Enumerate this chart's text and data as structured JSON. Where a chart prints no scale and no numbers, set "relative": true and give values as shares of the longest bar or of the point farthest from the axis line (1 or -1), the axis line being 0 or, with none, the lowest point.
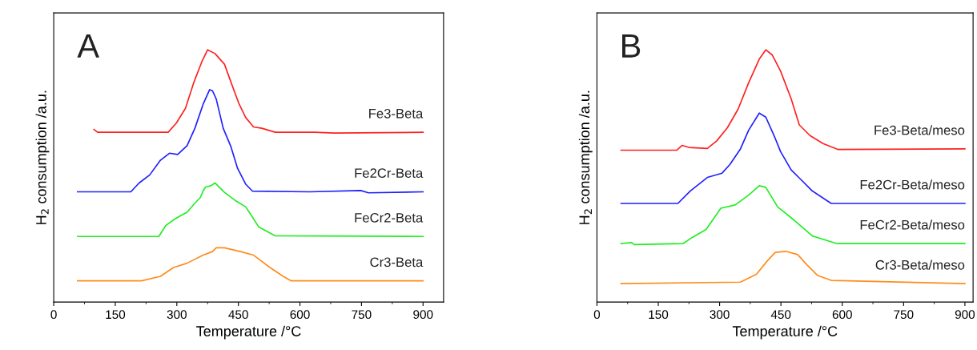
{
  "chart_data": [
    {
      "type": "line",
      "title": "A",
      "xlabel": "Temperature /°C",
      "ylabel": "H$_{2}$ consumption /a.u.",
      "relative": true,
      "xlim": [
        0,
        950
      ],
      "xticks": [
        0,
        150,
        300,
        450,
        600,
        750,
        900
      ],
      "grid": false,
      "legend": false,
      "marker": "none",
      "line_style": "solid",
      "series": [
        {
          "name": "Fe3-Beta",
          "color": "#ff2020",
          "x": [
            98,
            107,
            279,
            299,
            321,
            341,
            361,
            375,
            393,
            416,
            435,
            452,
            468,
            487,
            507,
            540,
            637,
            683,
            900
          ],
          "values": [
            0.684,
            0.673,
            0.673,
            0.71,
            0.768,
            0.869,
            0.953,
            1.0,
            0.985,
            0.943,
            0.858,
            0.784,
            0.731,
            0.694,
            0.689,
            0.673,
            0.673,
            0.67,
            0.673
          ]
        },
        {
          "name": "Fe2Cr-Beta",
          "color": "#2020ff",
          "x": [
            58,
            188,
            208,
            234,
            260,
            282,
            302,
            325,
            344,
            364,
            380,
            387,
            396,
            413,
            432,
            448,
            468,
            484,
            624,
            748,
            767,
            900
          ],
          "values": [
            0.437,
            0.437,
            0.472,
            0.504,
            0.562,
            0.59,
            0.585,
            0.62,
            0.689,
            0.784,
            0.842,
            0.837,
            0.805,
            0.689,
            0.615,
            0.53,
            0.467,
            0.44,
            0.437,
            0.442,
            0.433,
            0.437
          ]
        },
        {
          "name": "FeCr2-Beta",
          "color": "#22ee22",
          "x": [
            58,
            256,
            273,
            295,
            312,
            325,
            341,
            357,
            364,
            370,
            383,
            393,
            416,
            442,
            468,
            481,
            500,
            539,
            900
          ],
          "values": [
            0.26,
            0.26,
            0.303,
            0.329,
            0.345,
            0.356,
            0.387,
            0.414,
            0.44,
            0.456,
            0.461,
            0.472,
            0.435,
            0.403,
            0.377,
            0.345,
            0.297,
            0.263,
            0.26
          ]
        },
        {
          "name": "Cr3-Beta",
          "color": "#ff8c1a",
          "x": [
            58,
            214,
            260,
            292,
            325,
            364,
            387,
            396,
            416,
            455,
            487,
            527,
            559,
            579,
            900
          ],
          "values": [
            0.084,
            0.084,
            0.102,
            0.137,
            0.154,
            0.186,
            0.2,
            0.215,
            0.215,
            0.2,
            0.186,
            0.137,
            0.102,
            0.084,
            0.084
          ]
        }
      ]
    },
    {
      "type": "line",
      "title": "B",
      "xlabel": "Temperature /°C",
      "ylabel": "H$_{2}$ consumption /a.u.",
      "relative": true,
      "xlim": [
        0,
        920
      ],
      "xticks": [
        0,
        150,
        300,
        450,
        600,
        750,
        900
      ],
      "grid": false,
      "legend": false,
      "marker": "none",
      "line_style": "solid",
      "series": [
        {
          "name": "Fe3-Beta/meso",
          "color": "#ff2020",
          "x": [
            59,
            195,
            208,
            225,
            270,
            293,
            319,
            345,
            371,
            397,
            413,
            429,
            449,
            475,
            495,
            521,
            553,
            589,
            900
          ],
          "values": [
            0.602,
            0.602,
            0.621,
            0.613,
            0.609,
            0.639,
            0.691,
            0.764,
            0.869,
            0.963,
            1.0,
            0.979,
            0.916,
            0.806,
            0.702,
            0.66,
            0.628,
            0.605,
            0.607
          ]
        },
        {
          "name": "Fe2Cr-Beta/meso",
          "color": "#2020ff",
          "x": [
            59,
            198,
            228,
            270,
            306,
            325,
            351,
            371,
            397,
            413,
            436,
            449,
            475,
            498,
            527,
            573,
            900
          ],
          "values": [
            0.391,
            0.391,
            0.44,
            0.494,
            0.511,
            0.545,
            0.607,
            0.681,
            0.749,
            0.733,
            0.649,
            0.597,
            0.524,
            0.487,
            0.44,
            0.391,
            0.391
          ]
        },
        {
          "name": "FeCr2-Beta/meso",
          "color": "#22ee22",
          "x": [
            59,
            85,
            91,
            211,
            234,
            267,
            303,
            338,
            371,
            397,
            413,
            442,
            482,
            527,
            586,
            900
          ],
          "values": [
            0.232,
            0.236,
            0.228,
            0.232,
            0.257,
            0.288,
            0.372,
            0.385,
            0.424,
            0.461,
            0.455,
            0.377,
            0.325,
            0.262,
            0.232,
            0.232
          ]
        },
        {
          "name": "Cr3-Beta/meso",
          "color": "#ff8c1a",
          "x": [
            59,
            351,
            390,
            416,
            436,
            462,
            491,
            514,
            540,
            573,
            900
          ],
          "values": [
            0.073,
            0.079,
            0.11,
            0.162,
            0.197,
            0.201,
            0.188,
            0.147,
            0.105,
            0.086,
            0.073
          ]
        }
      ]
    }
  ]
}
